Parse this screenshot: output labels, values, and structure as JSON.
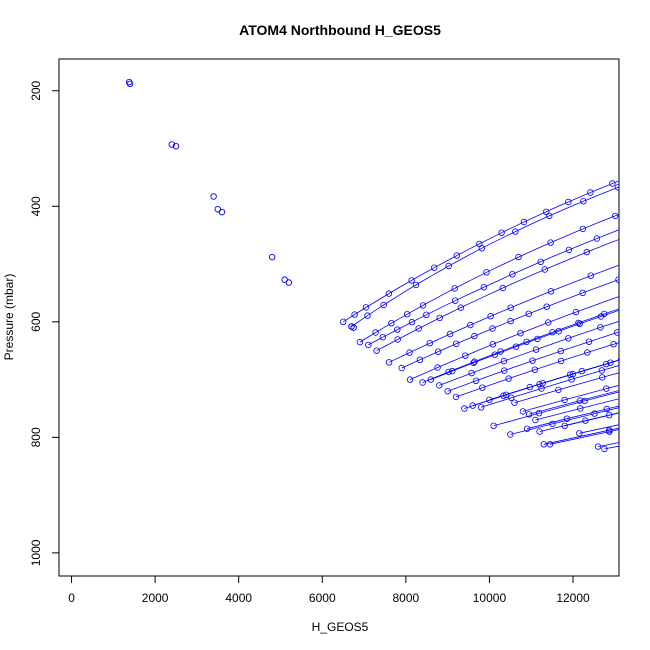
{
  "chart_data": {
    "type": "line",
    "title": "ATOM4 Northbound H_GEOS5",
    "xlabel": "H_GEOS5",
    "ylabel": "Pressure (mbar)",
    "xlim": [
      -300,
      13100
    ],
    "ylim": [
      1040,
      145
    ],
    "y_reversed": true,
    "x_ticks": [
      "0",
      "2000",
      "4000",
      "6000",
      "8000",
      "10000",
      "12000"
    ],
    "y_ticks": [
      "200",
      "400",
      "600",
      "800",
      "1000"
    ],
    "grid": false,
    "legend": "none",
    "line_color": "#0000ff",
    "marker": "open-circle",
    "profile_params": [
      [
        12750,
        820,
        -0.31,
        0.6
      ],
      [
        12600,
        816,
        -0.42,
        0.65
      ],
      [
        12150,
        793,
        -0.12,
        0.62
      ],
      [
        11800,
        780,
        -0.35,
        0.58
      ],
      [
        11450,
        812,
        0.05,
        0.55
      ],
      [
        11300,
        812,
        0.18,
        0.5
      ],
      [
        11200,
        790,
        0.02,
        0.6
      ],
      [
        11100,
        770,
        0.22,
        0.5
      ],
      [
        10950,
        760,
        0.3,
        0.55
      ],
      [
        10900,
        785,
        0.1,
        0.5
      ],
      [
        10800,
        755,
        0.38,
        0.52
      ],
      [
        10600,
        740,
        0.45,
        0.5
      ],
      [
        10500,
        795,
        -0.05,
        0.55
      ],
      [
        10100,
        780,
        -0.2,
        0.6
      ],
      [
        10000,
        735,
        0.35,
        0.5
      ],
      [
        9800,
        748,
        0.1,
        0.5
      ],
      [
        9600,
        745,
        0.2,
        0.45
      ],
      [
        9400,
        750,
        -0.05,
        0.48
      ],
      [
        9200,
        730,
        0.12,
        0.5
      ],
      [
        9000,
        720,
        0.25,
        0.45
      ],
      [
        8800,
        710,
        0.4,
        0.5
      ],
      [
        8600,
        700,
        0.5,
        0.45
      ],
      [
        8400,
        705,
        0.3,
        0.5
      ],
      [
        8100,
        700,
        -0.15,
        0.5
      ],
      [
        7900,
        680,
        0.45,
        0.45
      ],
      [
        7600,
        670,
        0.55,
        0.45
      ],
      [
        7300,
        650,
        0.05,
        0.5
      ],
      [
        7100,
        640,
        0.6,
        0.45
      ],
      [
        6900,
        635,
        -0.3,
        0.5
      ],
      [
        6700,
        608,
        -0.6,
        0.55
      ],
      [
        6500,
        600,
        0.3,
        0.45
      ]
    ],
    "scattered_points": [
      [
        1380,
        185
      ],
      [
        1400,
        188
      ],
      [
        2400,
        293
      ],
      [
        2500,
        296
      ],
      [
        3400,
        383
      ],
      [
        3500,
        405
      ],
      [
        3600,
        410
      ],
      [
        6700,
        608
      ],
      [
        6750,
        610
      ],
      [
        4800,
        488
      ],
      [
        5100,
        527
      ],
      [
        5200,
        532
      ]
    ]
  }
}
